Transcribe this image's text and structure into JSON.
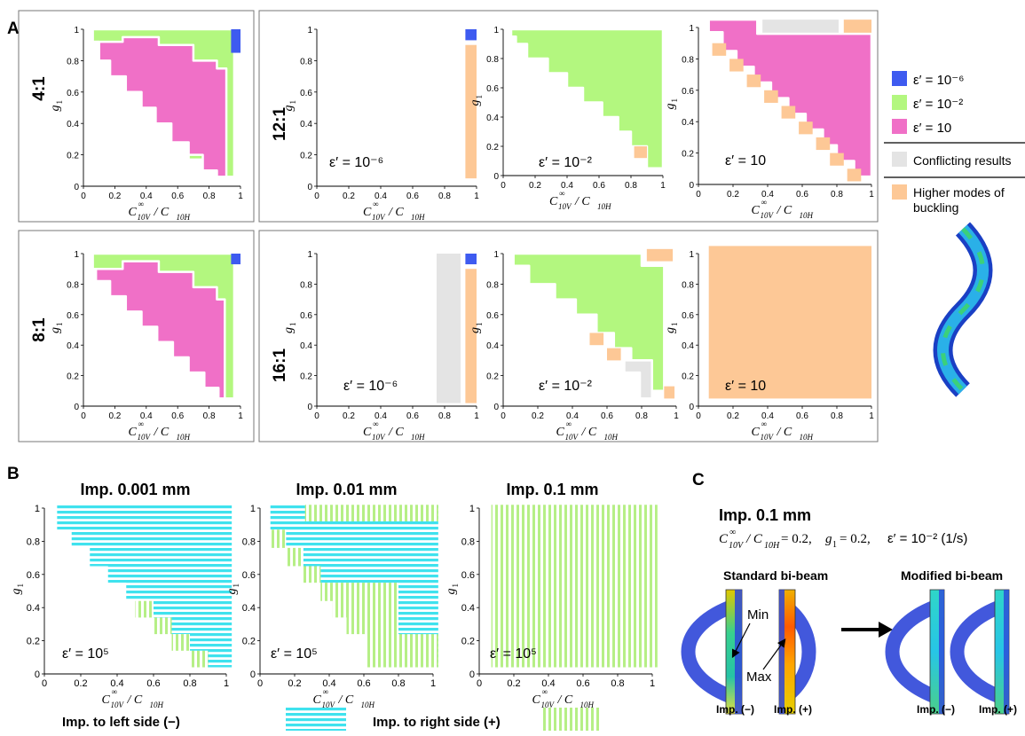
{
  "panel_labels": {
    "A": "A",
    "B": "B",
    "C": "C"
  },
  "colors": {
    "blue": "#3e5bf0",
    "green": "#b3f77f",
    "pink": "#f070c7",
    "gray": "#e4e4e4",
    "orange": "#fdc896",
    "cyan": "#3fe2ee",
    "lime": "#b6ef86"
  },
  "axes": {
    "xlabel_main": "C",
    "xlabel_sup": "∞",
    "xlabel_sub": "10V",
    "xlabel_mid": " / C",
    "xlabel_sub2": "10H",
    "ylabel_main": "g",
    "ylabel_sub": "1",
    "xticks": [
      "0",
      "0.2",
      "0.4",
      "0.6",
      "0.8",
      "1"
    ],
    "yticks": [
      "0",
      "0.2",
      "0.4",
      "0.6",
      "0.8",
      "1"
    ]
  },
  "legend": {
    "e6": "ε′ = 10⁻⁶",
    "e2": "ε′ = 10⁻²",
    "e10": "ε′ = 10",
    "conflict": "Conflicting results",
    "higher1": "Higher modes of",
    "higher2": "buckling"
  },
  "chart_data": [
    {
      "id": "A-4:1",
      "type": "heatmap",
      "ratio_label": "4:1",
      "xlim": [
        0,
        1
      ],
      "ylim": [
        0,
        1
      ],
      "annotation": ""
    },
    {
      "id": "A-12:1-a",
      "type": "heatmap",
      "ratio_label": "12:1",
      "annotation": "ε′ = 10⁻⁶"
    },
    {
      "id": "A-12:1-b",
      "type": "heatmap",
      "annotation": "ε′ = 10⁻²"
    },
    {
      "id": "A-12:1-c",
      "type": "heatmap",
      "annotation": "ε′ = 10"
    },
    {
      "id": "A-8:1",
      "type": "heatmap",
      "ratio_label": "8:1",
      "annotation": ""
    },
    {
      "id": "A-16:1-a",
      "type": "heatmap",
      "ratio_label": "16:1",
      "annotation": "ε′ = 10⁻⁶"
    },
    {
      "id": "A-16:1-b",
      "type": "heatmap",
      "annotation": "ε′ = 10⁻²"
    },
    {
      "id": "A-16:1-c",
      "type": "heatmap",
      "annotation": "ε′ = 10"
    },
    {
      "id": "B-0.001",
      "type": "heatmap",
      "title": "Imp. 0.001 mm",
      "annotation": "ε′ = 10⁵"
    },
    {
      "id": "B-0.01",
      "type": "heatmap",
      "title": "Imp. 0.01 mm",
      "annotation": "ε′ = 10⁵"
    },
    {
      "id": "B-0.1",
      "type": "heatmap",
      "title": "Imp. 0.1 mm",
      "annotation": "ε′ = 10⁵"
    }
  ],
  "b_legend": {
    "left": "Imp. to left side (−)",
    "right": "Imp. to right side (+)"
  },
  "c": {
    "title": "Imp. 0.1 mm",
    "cond_ratio": "= 0.2,",
    "cond_g": "= 0.2,",
    "cond_eps": "ε′ = 10⁻² (1/s)",
    "standard": "Standard bi-beam",
    "modified": "Modified bi-beam",
    "min": "Min",
    "max": "Max",
    "imp_minus": "Imp. (−)",
    "imp_plus": "Imp. (+)"
  }
}
